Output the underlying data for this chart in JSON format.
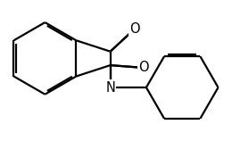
{
  "background_color": "#ffffff",
  "bond_color": "#000000",
  "atom_label_color": "#000000",
  "line_width": 1.6,
  "dbo": 0.05,
  "figsize": [
    2.6,
    1.58
  ],
  "dpi": 100,
  "N_label": "N",
  "O_label": "O",
  "font_size": 10.5
}
